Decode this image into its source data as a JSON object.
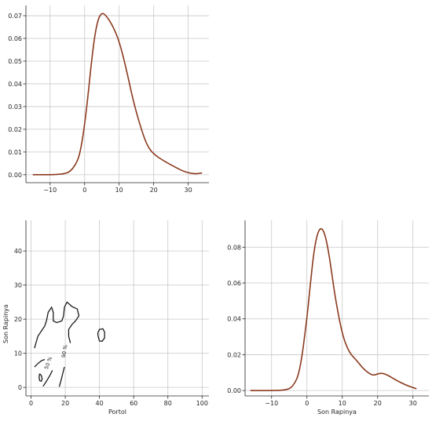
{
  "chart_data": [
    {
      "type": "line",
      "panel": "top-left",
      "title": "",
      "xlabel": "",
      "ylabel": "",
      "xlim": [
        -17,
        36
      ],
      "ylim": [
        -0.0035,
        0.0745
      ],
      "xticks": [
        -10,
        0,
        10,
        20,
        30
      ],
      "xtick_labels": [
        "−10",
        "0",
        "10",
        "20",
        "30"
      ],
      "yticks": [
        0.0,
        0.01,
        0.02,
        0.03,
        0.04,
        0.05,
        0.06,
        0.07
      ],
      "ytick_labels": [
        "0.00",
        "0.01",
        "0.02",
        "0.03",
        "0.04",
        "0.05",
        "0.06",
        "0.07"
      ],
      "grid": true,
      "line_color": "#8b3a1e",
      "series": [
        {
          "x": [
            -15,
            -10,
            -6,
            -4,
            -2,
            -1,
            0,
            1,
            2,
            3,
            4,
            5,
            6,
            8,
            10,
            12,
            14,
            16,
            18,
            20,
            23,
            26,
            29,
            32,
            34
          ],
          "values": [
            0.0,
            0.0,
            0.0003,
            0.0015,
            0.006,
            0.012,
            0.022,
            0.035,
            0.05,
            0.062,
            0.069,
            0.0712,
            0.0705,
            0.066,
            0.059,
            0.047,
            0.033,
            0.022,
            0.013,
            0.009,
            0.006,
            0.0035,
            0.0012,
            0.0003,
            0.0008
          ]
        }
      ]
    },
    {
      "type": "contour",
      "panel": "bottom-left",
      "title": "",
      "xlabel": "Portol",
      "ylabel": "Son Rapinya",
      "xlim": [
        -3,
        104
      ],
      "ylim": [
        -2.5,
        49
      ],
      "xticks": [
        0,
        20,
        40,
        60,
        80,
        100
      ],
      "xtick_labels": [
        "0",
        "20",
        "40",
        "60",
        "80",
        "100"
      ],
      "yticks": [
        0,
        10,
        20,
        30,
        40
      ],
      "ytick_labels": [
        "0",
        "10",
        "20",
        "30",
        "40"
      ],
      "grid": true,
      "contour_color": "#1a1a1a",
      "contour_labels": [
        "50 %",
        "90 %"
      ],
      "contours": [
        {
          "level": "outer",
          "points": [
            [
              2,
              11.5
            ],
            [
              4,
              15
            ],
            [
              6,
              16.5
            ],
            [
              8,
              18
            ],
            [
              9,
              19.5
            ],
            [
              10,
              22
            ],
            [
              12,
              23.5
            ],
            [
              13,
              22
            ],
            [
              13,
              19.5
            ],
            [
              15,
              19
            ],
            [
              18,
              19.5
            ],
            [
              19,
              21
            ],
            [
              19.5,
              23.5
            ],
            [
              21,
              25
            ],
            [
              24,
              23.7
            ],
            [
              27,
              23
            ],
            [
              28,
              21
            ],
            [
              26,
              19.5
            ],
            [
              24,
              18.5
            ],
            [
              22,
              17
            ],
            [
              22,
              15
            ],
            [
              23,
              13
            ]
          ]
        },
        {
          "level": "outer",
          "points": [
            [
              2,
              6
            ],
            [
              4,
              7
            ],
            [
              6,
              7.8
            ],
            [
              8,
              8.2
            ]
          ]
        },
        {
          "level": "outer",
          "points": [
            [
              7,
              0.3
            ],
            [
              9,
              1.8
            ],
            [
              11,
              3.5
            ],
            [
              12.5,
              5
            ]
          ]
        },
        {
          "level": "outer",
          "points": [
            [
              16.5,
              0.2
            ],
            [
              17.5,
              2
            ],
            [
              18.5,
              4
            ],
            [
              19.5,
              6
            ]
          ]
        },
        {
          "level": "inner",
          "points": [
            [
              5,
              4
            ],
            [
              6,
              3.5
            ],
            [
              6.5,
              2.5
            ],
            [
              6,
              1.8
            ],
            [
              5,
              2
            ],
            [
              4.7,
              3
            ],
            [
              5,
              4
            ]
          ]
        },
        {
          "level": "inner",
          "points": [
            [
              39,
              16
            ],
            [
              40,
              17
            ],
            [
              42,
              17.2
            ],
            [
              43,
              16.2
            ],
            [
              43,
              14.5
            ],
            [
              41.5,
              13.5
            ],
            [
              40,
              13.6
            ],
            [
              39.2,
              15
            ],
            [
              39,
              16
            ]
          ]
        }
      ]
    },
    {
      "type": "line",
      "panel": "bottom-right",
      "title": "",
      "xlabel": "Son Rapinya",
      "ylabel": "",
      "xlim": [
        -17.5,
        34.5
      ],
      "ylim": [
        -0.003,
        0.095
      ],
      "xticks": [
        -10,
        0,
        10,
        20,
        30
      ],
      "xtick_labels": [
        "−10",
        "0",
        "10",
        "20",
        "30"
      ],
      "yticks": [
        0.0,
        0.02,
        0.04,
        0.06,
        0.08
      ],
      "ytick_labels": [
        "0.00",
        "0.02",
        "0.04",
        "0.06",
        "0.08"
      ],
      "grid": true,
      "line_color": "#8b3a1e",
      "series": [
        {
          "x": [
            -16,
            -10,
            -6,
            -4,
            -2,
            0,
            1,
            2,
            3,
            4,
            5,
            6,
            7,
            8,
            10,
            12,
            14,
            16,
            18,
            19,
            21,
            23,
            25,
            28,
            31
          ],
          "values": [
            0.0,
            0.0,
            0.0002,
            0.002,
            0.01,
            0.04,
            0.06,
            0.078,
            0.088,
            0.091,
            0.088,
            0.079,
            0.066,
            0.052,
            0.031,
            0.021,
            0.017,
            0.012,
            0.009,
            0.0085,
            0.01,
            0.0085,
            0.006,
            0.003,
            0.001
          ]
        }
      ]
    }
  ]
}
